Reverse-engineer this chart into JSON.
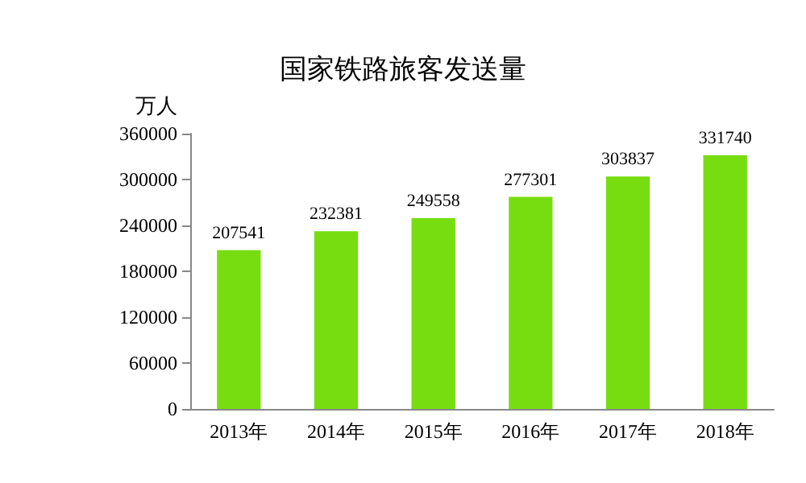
{
  "chart_data": {
    "type": "bar",
    "title": "国家铁路旅客发送量",
    "ylabel": "万人",
    "categories": [
      "2013年",
      "2014年",
      "2015年",
      "2016年",
      "2017年",
      "2018年"
    ],
    "values": [
      207541,
      232381,
      249558,
      277301,
      303837,
      331740
    ],
    "color": "#77dd11",
    "ylim": [
      0,
      360000
    ],
    "yticks": [
      0,
      60000,
      120000,
      180000,
      240000,
      300000,
      360000
    ],
    "data_labels": true
  }
}
